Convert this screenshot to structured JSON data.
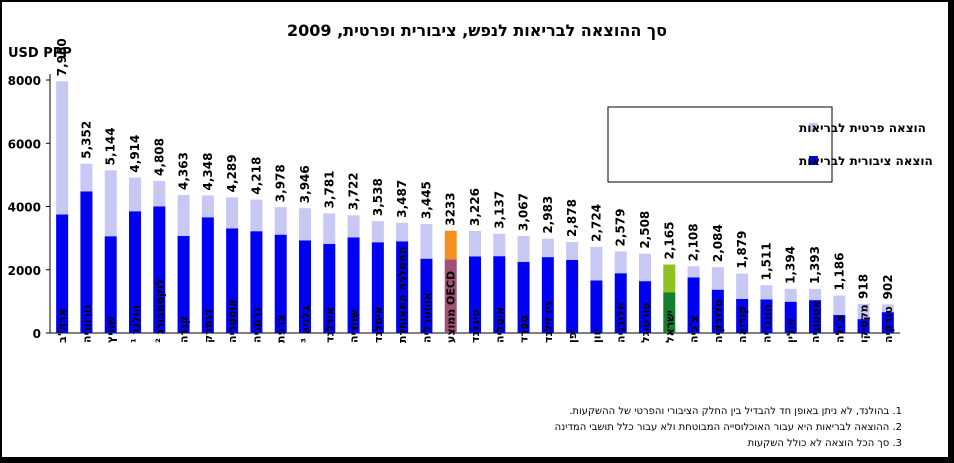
{
  "chart_data": {
    "type": "bar",
    "title": "סך ההוצאה לבריאות לנפש, ציבורית ופרטית, 2009",
    "ylabel": "USD PPP",
    "ylim": [
      0,
      8000
    ],
    "yticks": [
      0,
      2000,
      4000,
      6000,
      8000
    ],
    "stacked": true,
    "legend_position": "right",
    "categories": [
      "ארה\"ב",
      "נורווגיה",
      "שוויץ",
      "הולנד ¹",
      "לוקסמבורג ²",
      "קנדה",
      "דנמרק",
      "אוסטריה",
      "גרמניה",
      "צרפת",
      "בלגיה ³",
      "אירלנד",
      "שוודיה",
      "איסלנד",
      "הממלכה המאוחדת",
      "אוסטרליה",
      "OECD ממוצע",
      "פינלנד",
      "איטליה",
      "ספרד",
      "ניו זילנד",
      "יפן",
      "יוון",
      "סלובניה",
      "פורטוגל",
      "ישראל",
      "צ'כיה",
      "סלובקיה",
      "קוריאה",
      "הונגריה",
      "פולין",
      "אסטוניה",
      "צ'ילה",
      "מקסיקו",
      "טורקיה"
    ],
    "series": [
      {
        "name": "הוצאה ציבורית לבריאות",
        "values": [
          3750,
          4480,
          3060,
          3850,
          4000,
          3070,
          3660,
          3310,
          3220,
          3110,
          2930,
          2820,
          3020,
          2870,
          2900,
          2350,
          2330,
          2420,
          2430,
          2250,
          2400,
          2310,
          1660,
          1890,
          1640,
          1290,
          1760,
          1370,
          1080,
          1060,
          990,
          1040,
          570,
          440,
          660
        ]
      },
      {
        "name": "הוצאה פרטית לבריאות",
        "values": [
          4210,
          872,
          2084,
          1064,
          808,
          1293,
          688,
          979,
          998,
          868,
          1016,
          961,
          702,
          668,
          587,
          1095,
          903,
          806,
          707,
          817,
          583,
          568,
          1064,
          689,
          868,
          875,
          348,
          714,
          799,
          451,
          404,
          353,
          616,
          478,
          242
        ]
      }
    ],
    "totals": [
      "7,960",
      "5,352",
      "5,144",
      "4,914",
      "4,808",
      "4,363",
      "4,348",
      "4,289",
      "4,218",
      "3,978",
      "3,946",
      "3,781",
      "3,722",
      "3,538",
      "3,487",
      "3,445",
      "3233",
      "3,226",
      "3,137",
      "3,067",
      "2,983",
      "2,878",
      "2,724",
      "2,579",
      "2,508",
      "2,165",
      "2,108",
      "2,084",
      "1,879",
      "1,511",
      "1,394",
      "1,393",
      "1,186",
      "918",
      "902"
    ],
    "highlight": {
      "OECD ממוצע": [
        "#a04f75",
        "#f3901f"
      ],
      "ישראל": [
        "#157f2e",
        "#8dc221"
      ]
    },
    "colors": {
      "public": "#0000f2",
      "private": "#c7c9f4"
    }
  },
  "footnotes": [
    "1. בהולנד, לא ניתן באופן חד להבדיל בין החלק הציבורי והפרטי של ההשקעות.",
    "2. ההוצאה לבריאות היא עבור האוכלוסייה המבוטחת ולא עבור כלל תושבי המדינה",
    "3. סך הכל הוצאה לא כולל השקעות"
  ]
}
